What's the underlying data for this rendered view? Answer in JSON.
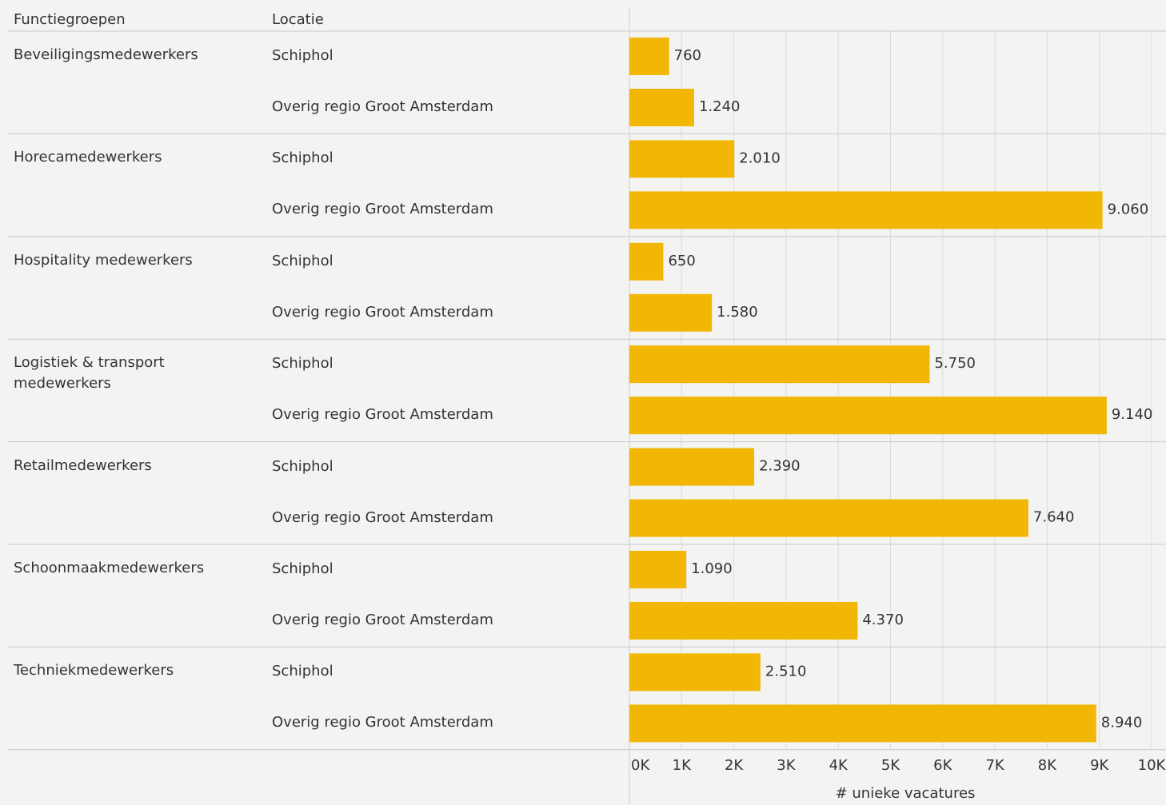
{
  "chart_data": {
    "type": "bar",
    "column_headers": [
      "Functiegroepen",
      "Locatie"
    ],
    "groups": [
      "Beveiligingsmedewerkers",
      "Horecamedewerkers",
      "Hospitality medewerkers",
      "Logistiek & transport medewerkers",
      "Retailmedewerkers",
      "Schoonmaakmedewerkers",
      "Techniekmedewerkers"
    ],
    "categories": [
      "Schiphol",
      "Overig regio Groot Amsterdam",
      "Schiphol",
      "Overig regio Groot Amsterdam",
      "Schiphol",
      "Overig regio Groot Amsterdam",
      "Schiphol",
      "Overig regio Groot Amsterdam",
      "Schiphol",
      "Overig regio Groot Amsterdam",
      "Schiphol",
      "Overig regio Groot Amsterdam",
      "Schiphol",
      "Overig regio Groot Amsterdam"
    ],
    "values": [
      760,
      1240,
      2010,
      9060,
      650,
      1580,
      5750,
      9140,
      2390,
      7640,
      1090,
      4370,
      2510,
      8940
    ],
    "value_labels": [
      "760",
      "1.240",
      "2.010",
      "9.060",
      "650",
      "1.580",
      "5.750",
      "9.140",
      "2.390",
      "7.640",
      "1.090",
      "4.370",
      "2.510",
      "8.940"
    ],
    "color": "#f2b705",
    "xlabel": "# unieke vacatures",
    "xlim": [
      0,
      10000
    ],
    "xticks": [
      {
        "value": 0,
        "label": "0K"
      },
      {
        "value": 1000,
        "label": "1K"
      },
      {
        "value": 2000,
        "label": "2K"
      },
      {
        "value": 3000,
        "label": "3K"
      },
      {
        "value": 4000,
        "label": "4K"
      },
      {
        "value": 5000,
        "label": "5K"
      },
      {
        "value": 6000,
        "label": "6K"
      },
      {
        "value": 7000,
        "label": "7K"
      },
      {
        "value": 8000,
        "label": "8K"
      },
      {
        "value": 9000,
        "label": "9K"
      },
      {
        "value": 10000,
        "label": "10K"
      }
    ],
    "grid": true
  }
}
